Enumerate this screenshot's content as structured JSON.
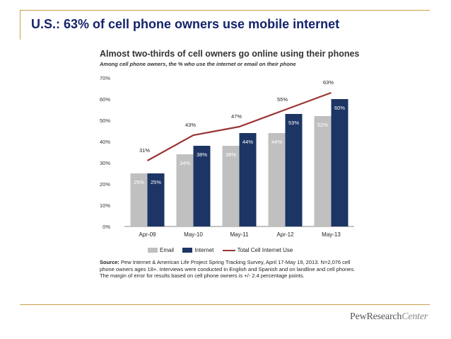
{
  "slide": {
    "title": "U.S.: 63% of cell phone owners use mobile internet",
    "logo_text": "PewResearch",
    "logo_suffix": "Center"
  },
  "colors": {
    "accent_gold": "#c8a14a",
    "title_navy": "#14236b",
    "email_gray": "#c0c0c0",
    "internet_navy": "#1c3564",
    "line_red": "#9b3535"
  },
  "chart_data": {
    "type": "bar",
    "title": "Almost two-thirds of cell owners go online using their phones",
    "subtitle": "Among cell phone owners, the % who use the internet or email on their phone",
    "categories": [
      "Apr-09",
      "May-10",
      "May-11",
      "Apr-12",
      "May-13"
    ],
    "series": [
      {
        "name": "Email",
        "kind": "bar",
        "color": "#c0c0c0",
        "values": [
          25,
          34,
          38,
          44,
          52
        ],
        "labels": [
          "25%",
          "34%",
          "38%",
          "44%",
          "52%"
        ]
      },
      {
        "name": "Internet",
        "kind": "bar",
        "color": "#1c3564",
        "values": [
          25,
          38,
          44,
          53,
          60
        ],
        "labels": [
          "25%",
          "38%",
          "44%",
          "53%",
          "60%"
        ]
      },
      {
        "name": "Total Cell Internet Use",
        "kind": "line",
        "color": "#9b3535",
        "values": [
          31,
          43,
          47,
          55,
          63
        ],
        "labels": [
          "31%",
          "43%",
          "47%",
          "55%",
          "63%"
        ]
      }
    ],
    "y_ticks": [
      "0%",
      "10%",
      "20%",
      "30%",
      "40%",
      "50%",
      "60%",
      "70%"
    ],
    "ylim": [
      0,
      70
    ],
    "xlabel": "",
    "ylabel": "",
    "legend_position": "bottom",
    "grid": false,
    "source_label": "Source:",
    "source_text": "Pew Internet & American Life Project Spring Tracking Survey, April 17-May 19, 2013. N=2,076 cell phone owners ages 18+. Interviews were conducted in English and Spanish and on landline and cell phones. The margin of error for results based on cell phone owners is +/- 2.4 percentage points."
  }
}
